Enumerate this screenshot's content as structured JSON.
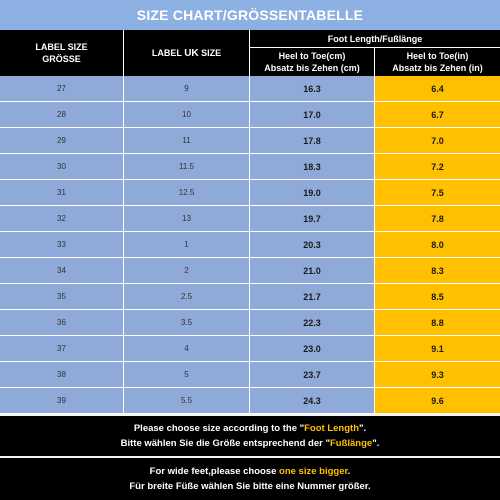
{
  "title": "SIZE CHART/GRÖSSENTABELLE",
  "header": {
    "label_size_line1": "LABEL SIZE",
    "label_size_line2": "GRÖSSE",
    "uk_size_pre": "LABEL ",
    "uk_size_bold": "UK",
    "uk_size_post": " SIZE",
    "foot_length": "Foot Length/Fußlänge",
    "cm_line1": "Heel to Toe(cm)",
    "cm_line2": "Absatz bis Zehen (cm)",
    "in_line1": "Heel to Toe(in)",
    "in_line2": "Absatz bis Zehen (in)"
  },
  "rows": [
    {
      "label": "27",
      "uk": "9",
      "cm": "16.3",
      "in": "6.4"
    },
    {
      "label": "28",
      "uk": "10",
      "cm": "17.0",
      "in": "6.7"
    },
    {
      "label": "29",
      "uk": "11",
      "cm": "17.8",
      "in": "7.0"
    },
    {
      "label": "30",
      "uk": "11.5",
      "cm": "18.3",
      "in": "7.2"
    },
    {
      "label": "31",
      "uk": "12.5",
      "cm": "19.0",
      "in": "7.5"
    },
    {
      "label": "32",
      "uk": "13",
      "cm": "19.7",
      "in": "7.8"
    },
    {
      "label": "33",
      "uk": "1",
      "cm": "20.3",
      "in": "8.0"
    },
    {
      "label": "34",
      "uk": "2",
      "cm": "21.0",
      "in": "8.3"
    },
    {
      "label": "35",
      "uk": "2.5",
      "cm": "21.7",
      "in": "8.5"
    },
    {
      "label": "36",
      "uk": "3.5",
      "cm": "22.3",
      "in": "8.8"
    },
    {
      "label": "37",
      "uk": "4",
      "cm": "23.0",
      "in": "9.1"
    },
    {
      "label": "38",
      "uk": "5",
      "cm": "23.7",
      "in": "9.3"
    },
    {
      "label": "39",
      "uk": "5.5",
      "cm": "24.3",
      "in": "9.6"
    }
  ],
  "footer1": {
    "line1_pre": "Please choose size according to the \"",
    "line1_hl": "Foot Length",
    "line1_post": "\".",
    "line2_pre": "Bitte wählen Sie die Größe entsprechend der \"",
    "line2_hl": "Fußlänge",
    "line2_post": "\"."
  },
  "footer2": {
    "line1_pre": "For wide feet,please choose ",
    "line1_hl": "one size bigger",
    "line1_post": ".",
    "line2": "Für breite Füße wählen Sie bitte eine Nummer größer."
  },
  "colors": {
    "title_bg": "#8db0e3",
    "header_bg": "#000000",
    "row_bg": "#8fa9d9",
    "inch_col_bg": "#ffc000",
    "highlight_text": "#ffc000"
  }
}
